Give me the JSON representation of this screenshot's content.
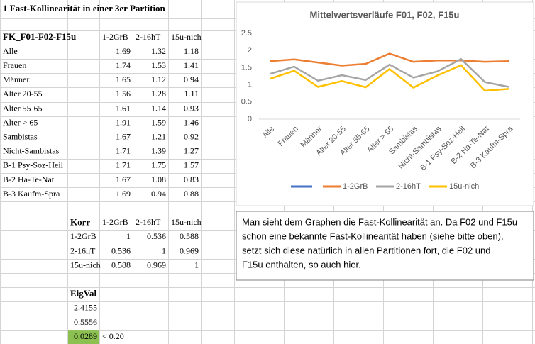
{
  "sheet": {
    "title": "1 Fast-Kollinearität in einer 3er Partition",
    "means": {
      "header": [
        "FK_F01-F02-F15u",
        "1-2GrB",
        "2-16hT",
        "15u-nich"
      ],
      "rows": [
        [
          "Alle",
          1.69,
          1.32,
          1.18
        ],
        [
          "Frauen",
          1.74,
          1.53,
          1.41
        ],
        [
          "Männer",
          1.65,
          1.12,
          0.94
        ],
        [
          "Alter 20-55",
          1.56,
          1.28,
          1.11
        ],
        [
          "Alter 55-65",
          1.61,
          1.14,
          0.93
        ],
        [
          "Alter > 65",
          1.91,
          1.59,
          1.46
        ],
        [
          "Sambistas",
          1.67,
          1.21,
          0.92
        ],
        [
          "Nicht-Sambistas",
          1.71,
          1.39,
          1.27
        ],
        [
          "B-1 Psy-Soz-Heil",
          1.71,
          1.75,
          1.57
        ],
        [
          "B-2 Ha-Te-Nat",
          1.67,
          1.08,
          0.83
        ],
        [
          "B-3 Kaufm-Spra",
          1.69,
          0.94,
          0.88
        ]
      ]
    },
    "corr": {
      "header": [
        "Korr",
        "1-2GrB",
        "2-16hT",
        "15u-nich"
      ],
      "rows": [
        [
          "1-2GrB",
          1,
          0.536,
          0.588
        ],
        [
          "2-16hT",
          0.536,
          1,
          0.969
        ],
        [
          "15u-nich",
          0.588,
          0.969,
          1
        ]
      ]
    },
    "eig": {
      "header": "EigVal",
      "values": [
        2.4155,
        0.5556,
        0.0289
      ],
      "note": "< 0.20"
    }
  },
  "chart_data": {
    "type": "line",
    "title": "Mittelwertsverläufe F01, F02, F15u",
    "categories": [
      "Alle",
      "Frauen",
      "Männer",
      "Alter 20-55",
      "Alter 55-65",
      "Alter > 65",
      "Sambistas",
      "Nicht-Sambistas",
      "B-1 Psy-Soz-Heil",
      "B-2 Ha-Te-Nat",
      "B-3 Kaufm-Spra"
    ],
    "series": [
      {
        "name": "1-2GrB",
        "color": "#ed7d31",
        "values": [
          1.69,
          1.74,
          1.65,
          1.56,
          1.61,
          1.91,
          1.67,
          1.71,
          1.71,
          1.67,
          1.69
        ]
      },
      {
        "name": "2-16hT",
        "color": "#a5a5a5",
        "values": [
          1.32,
          1.53,
          1.12,
          1.28,
          1.14,
          1.59,
          1.21,
          1.39,
          1.75,
          1.08,
          0.94
        ]
      },
      {
        "name": "15u-nich",
        "color": "#ffc000",
        "values": [
          1.18,
          1.41,
          0.94,
          1.11,
          0.93,
          1.46,
          0.92,
          1.27,
          1.57,
          0.83,
          0.88
        ]
      }
    ],
    "ylim": [
      0,
      2.5
    ],
    "yticks": [
      0,
      0.5,
      1,
      1.5,
      2,
      2.5
    ],
    "grid": false,
    "legend": "bottom"
  },
  "textbox": [
    "Man sieht dem Graphen die Fast-Kollinearität an. Da F02 und F15u",
    "schon eine bekannte Fast-Kollinearität haben (siehe bitte oben),",
    "setzt sich diese natürlich in allen Partitionen fort, die F02 und",
    "F15u enthalten, so auch hier."
  ]
}
